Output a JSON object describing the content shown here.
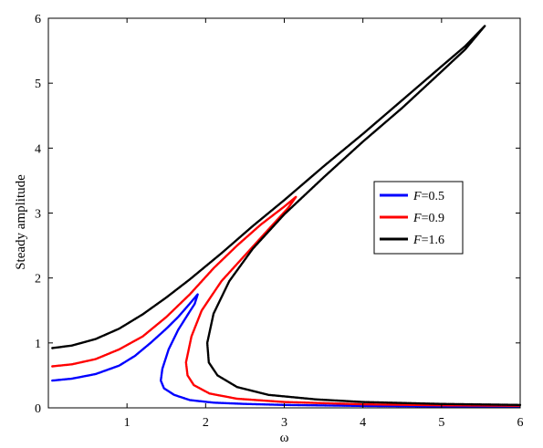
{
  "chart_data": {
    "type": "line",
    "title": "",
    "xlabel": "ω",
    "ylabel": "Steady amplitude",
    "xlim": [
      0,
      6
    ],
    "ylim": [
      0,
      6
    ],
    "xticks": [
      1,
      2,
      3,
      4,
      5,
      6
    ],
    "yticks": [
      0,
      1,
      2,
      3,
      4,
      5,
      6
    ],
    "grid": false,
    "legend_position": "right",
    "series": [
      {
        "name": "F=0.5",
        "label_italic": "F",
        "label_rest": "=0.5",
        "color": "#0000ff",
        "points": [
          [
            0.05,
            0.42
          ],
          [
            0.3,
            0.45
          ],
          [
            0.6,
            0.52
          ],
          [
            0.9,
            0.65
          ],
          [
            1.1,
            0.8
          ],
          [
            1.3,
            1.0
          ],
          [
            1.5,
            1.22
          ],
          [
            1.65,
            1.4
          ],
          [
            1.78,
            1.58
          ],
          [
            1.9,
            1.75
          ],
          [
            1.86,
            1.6
          ],
          [
            1.78,
            1.45
          ],
          [
            1.65,
            1.2
          ],
          [
            1.53,
            0.9
          ],
          [
            1.45,
            0.6
          ],
          [
            1.43,
            0.42
          ],
          [
            1.47,
            0.3
          ],
          [
            1.6,
            0.2
          ],
          [
            1.8,
            0.12
          ],
          [
            2.1,
            0.08
          ],
          [
            2.5,
            0.06
          ],
          [
            3.0,
            0.045
          ],
          [
            4.0,
            0.03
          ],
          [
            5.0,
            0.022
          ],
          [
            6.0,
            0.018
          ]
        ]
      },
      {
        "name": "F=0.9",
        "label_italic": "F",
        "label_rest": "=0.9",
        "color": "#ff0000",
        "points": [
          [
            0.05,
            0.64
          ],
          [
            0.3,
            0.67
          ],
          [
            0.6,
            0.75
          ],
          [
            0.9,
            0.9
          ],
          [
            1.2,
            1.1
          ],
          [
            1.5,
            1.4
          ],
          [
            1.8,
            1.75
          ],
          [
            2.1,
            2.15
          ],
          [
            2.4,
            2.5
          ],
          [
            2.7,
            2.82
          ],
          [
            3.0,
            3.1
          ],
          [
            3.15,
            3.25
          ],
          [
            3.05,
            3.08
          ],
          [
            2.8,
            2.75
          ],
          [
            2.5,
            2.35
          ],
          [
            2.2,
            1.95
          ],
          [
            1.95,
            1.5
          ],
          [
            1.82,
            1.1
          ],
          [
            1.75,
            0.7
          ],
          [
            1.77,
            0.5
          ],
          [
            1.85,
            0.35
          ],
          [
            2.05,
            0.22
          ],
          [
            2.4,
            0.14
          ],
          [
            3.0,
            0.09
          ],
          [
            4.0,
            0.055
          ],
          [
            5.0,
            0.04
          ],
          [
            6.0,
            0.032
          ]
        ]
      },
      {
        "name": "F=1.6",
        "label_italic": "F",
        "label_rest": "=1.6",
        "color": "#000000",
        "points": [
          [
            0.05,
            0.92
          ],
          [
            0.3,
            0.96
          ],
          [
            0.6,
            1.06
          ],
          [
            0.9,
            1.22
          ],
          [
            1.2,
            1.44
          ],
          [
            1.5,
            1.7
          ],
          [
            1.8,
            1.98
          ],
          [
            2.2,
            2.38
          ],
          [
            2.6,
            2.8
          ],
          [
            3.0,
            3.2
          ],
          [
            3.5,
            3.72
          ],
          [
            4.0,
            4.22
          ],
          [
            4.5,
            4.74
          ],
          [
            5.0,
            5.26
          ],
          [
            5.3,
            5.57
          ],
          [
            5.55,
            5.88
          ],
          [
            5.3,
            5.52
          ],
          [
            5.0,
            5.18
          ],
          [
            4.5,
            4.62
          ],
          [
            4.0,
            4.1
          ],
          [
            3.5,
            3.55
          ],
          [
            3.0,
            2.98
          ],
          [
            2.6,
            2.45
          ],
          [
            2.3,
            1.95
          ],
          [
            2.1,
            1.45
          ],
          [
            2.02,
            1.0
          ],
          [
            2.04,
            0.7
          ],
          [
            2.15,
            0.5
          ],
          [
            2.4,
            0.32
          ],
          [
            2.8,
            0.2
          ],
          [
            3.4,
            0.13
          ],
          [
            4.0,
            0.09
          ],
          [
            5.0,
            0.06
          ],
          [
            6.0,
            0.045
          ]
        ]
      }
    ]
  }
}
